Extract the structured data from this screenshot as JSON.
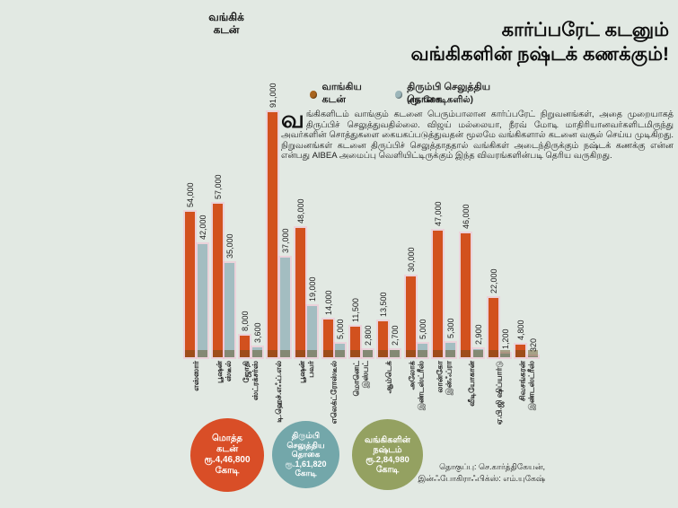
{
  "corner_label": "வங்கிக்\nகடன்",
  "title": {
    "line1": "கார்ப்பரேட் கடனும்",
    "line2": "வங்கிகளின் நஷ்டக் கணக்கும்!"
  },
  "legend": {
    "loan_label": "வாங்கிய கடன்",
    "repaid_label": "திரும்பி செலுத்திய தொகை",
    "unit": "(ரூ. கோடிகளில்)",
    "loan_dot_color": "#a8641e",
    "repaid_dot_color": "#9cb6ba"
  },
  "intro": {
    "dropcap": "வ",
    "text": "ங்கிகளிடம் வாங்கும் கடனை பெரும்பாலான கார்ப்பரேட் நிறுவனங்கள், அதை முறையாகத் திருப்பிச் செலுத்துவதில்லை. விஜய் மல்லையா, நீரவ் மோடி மாதிரியானவர்களிடமிருந்து அவர்களின் சொத்துகளை கையகப்படுத்துவதன் மூலமே வங்கிகளால் கடனை வசூல் செய்ய முடிகிறது. நிறுவனங்கள் கடனை திருப்பிச் செலுத்தாததால் வங்கிகள் அடைந்திருக்கும் நஷ்டக் கணக்கு என்ன என்பது AIBEA அமைப்பு வெளியிட்டிருக்கும் இந்த விவரங்களின்படி தெரிய வருகிறது."
  },
  "chart_data": {
    "type": "bar",
    "title": "கார்ப்பரேட் கடனும் வங்கிகளின் நஷ்டக் கணக்கும்!",
    "unit": "ரூ. கோடிகளில்",
    "grid": false,
    "ylim": [
      0,
      91000
    ],
    "categories": [
      "எஸ்ஸார்",
      "பூஷன்\nஸ்டீல்",
      "ஜோதி\nஸ்ட்ரக்சர்ஸ்",
      "டி.ஹெச்.எஃப்.எல்",
      "பூஷன்\nபவர்",
      "எலெக்ட்ரோஸ்டீல்",
      "மொனெட்\nஇஸ்பட்",
      "ஆம்டெக்",
      "அலோக்\nஇண்டஸ்ட்ரீஸ்",
      "லான்கோ\nஇன்ஃப்ரா",
      "வீடியோகான்",
      "ஏ.பி.ஜி ஷிப்யார்டு",
      "சிவசங்கரன்\nஇண்டஸ்ட்ரீஸ்"
    ],
    "series": [
      {
        "name": "வாங்கிய கடன்",
        "color": "#d2511e",
        "values": [
          54000,
          57000,
          8000,
          91000,
          48000,
          14000,
          11500,
          13500,
          30000,
          47000,
          46000,
          22000,
          4800
        ],
        "labels": [
          "54,000",
          "57,000",
          "8,000",
          "91,000",
          "48,000",
          "14,000",
          "11,500",
          "13,500",
          "30,000",
          "47,000",
          "46,000",
          "22,000",
          "4,800"
        ]
      },
      {
        "name": "திரும்பி செலுத்திய தொகை",
        "color": "#a3bdc1",
        "values": [
          42000,
          35000,
          3600,
          37000,
          19000,
          5000,
          2800,
          2700,
          5000,
          5300,
          2900,
          1200,
          320
        ],
        "labels": [
          "42,000",
          "35,000",
          "3,600",
          "37,000",
          "19,000",
          "5,000",
          "2,800",
          "2,700",
          "5,000",
          "5,300",
          "2,900",
          "1,200",
          "320"
        ]
      }
    ]
  },
  "summary_circles": [
    {
      "text": "மொத்த\nகடன்\nரூ.4,46,800\nகோடி",
      "color": "#d94e27"
    },
    {
      "text": "திரும்பி\nசெலுத்திய\nதொகை\nரூ.1,61,820\nகோடி",
      "color": "#73a7aa"
    },
    {
      "text": "வங்கிகளின்\nநஷ்டம்\nரூ.2,84,980\nகோடி",
      "color": "#94a161"
    }
  ],
  "credits": {
    "line1": "தொகுப்பு: செ.கார்த்திகேயன்,",
    "line2": "இன்ஃபோகிராஃபிக்ஸ்: எம்.யுகேஷ்"
  }
}
